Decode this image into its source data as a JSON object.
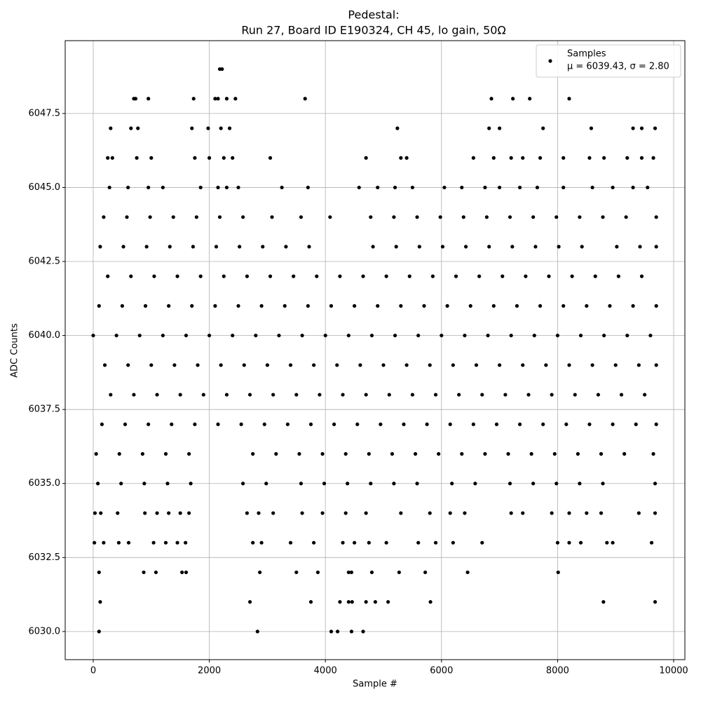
{
  "chart_data": {
    "type": "scatter",
    "title": "Pedestal:",
    "subtitle": "Run 27, Board ID E190324, CH 45, lo gain, 50Ω",
    "x_label": "Sample #",
    "y_label": "ADC Counts",
    "legend_label": "Samples",
    "legend_note": "μ = 6039.43, σ = 2.80",
    "legend_position": "upper right",
    "color": "#000000",
    "grid": true,
    "xlim": [
      -483,
      10193
    ],
    "ylim": [
      6029.05,
      6049.96
    ],
    "xticks": [
      0,
      2000,
      4000,
      6000,
      8000,
      10000
    ],
    "yticks": [
      {
        "value": 6030,
        "label": "6030.0"
      },
      {
        "value": 6032.5,
        "label": "6032.5"
      },
      {
        "value": 6035,
        "label": "6035.0"
      },
      {
        "value": 6037.5,
        "label": "6037.5"
      },
      {
        "value": 6040,
        "label": "6040.0"
      },
      {
        "value": 6042.5,
        "label": "6042.5"
      },
      {
        "value": 6045,
        "label": "6045.0"
      },
      {
        "value": 6047.5,
        "label": "6047.5"
      }
    ],
    "x": [
      0,
      400,
      800,
      1200,
      1600,
      2000,
      2400,
      2800,
      3200,
      3600,
      4000,
      4400,
      4800,
      5200,
      5600,
      6000,
      6400,
      6800,
      7200,
      7600,
      8000,
      8400,
      8800,
      9200,
      9600,
      200,
      600,
      1000,
      1400,
      1800,
      2200,
      2600,
      3000,
      3400,
      3800,
      4200,
      4600,
      5000,
      5400,
      5800,
      6200,
      6600,
      7000,
      7400,
      7800,
      8200,
      8600,
      9000,
      9400,
      9700,
      100,
      500,
      900,
      1300,
      1700,
      2100,
      2500,
      2900,
      3300,
      3700,
      4100,
      4500,
      4900,
      5300,
      5700,
      6100,
      6500,
      6900,
      7300,
      7700,
      8100,
      8500,
      8900,
      9300,
      9700,
      300,
      700,
      1100,
      1500,
      1900,
      2300,
      2700,
      3100,
      3500,
      3900,
      4300,
      4700,
      5100,
      5500,
      5900,
      6300,
      6700,
      7100,
      7500,
      7900,
      8300,
      8700,
      9100,
      9500,
      150,
      550,
      950,
      1350,
      1750,
      2150,
      2550,
      2950,
      3350,
      3750,
      4150,
      4550,
      4950,
      5350,
      5750,
      6150,
      6550,
      6950,
      7350,
      7750,
      8150,
      8550,
      8950,
      9350,
      9700,
      250,
      650,
      1050,
      1450,
      1850,
      2250,
      2650,
      3050,
      3450,
      3850,
      4250,
      4650,
      5050,
      5450,
      5850,
      6250,
      6650,
      7050,
      7450,
      7850,
      8250,
      8650,
      9050,
      9450,
      50,
      450,
      850,
      1250,
      1650,
      2750,
      3150,
      3550,
      3950,
      4350,
      4750,
      5150,
      5550,
      5950,
      6350,
      6750,
      7150,
      7550,
      7950,
      8350,
      8750,
      9150,
      9650,
      80,
      480,
      880,
      1280,
      1680,
      2580,
      2980,
      3580,
      3980,
      4380,
      4780,
      5180,
      5580,
      6180,
      6580,
      7180,
      7580,
      7980,
      8380,
      8780,
      9680,
      120,
      520,
      920,
      1320,
      1720,
      2120,
      2520,
      2920,
      3320,
      3720,
      4820,
      5220,
      5620,
      6020,
      6420,
      6820,
      7220,
      7620,
      8020,
      8420,
      9020,
      9420,
      9700,
      180,
      580,
      980,
      1380,
      1780,
      2180,
      2580,
      3080,
      3580,
      4080,
      4780,
      5180,
      5580,
      5980,
      6380,
      6780,
      7180,
      7580,
      7980,
      8380,
      8780,
      9180,
      9700,
      280,
      600,
      950,
      1200,
      1850,
      2150,
      2300,
      2500,
      3250,
      3700,
      4580,
      4900,
      5200,
      5500,
      6050,
      6350,
      6750,
      7000,
      7350,
      7650,
      8100,
      8600,
      8950,
      9300,
      9550,
      250,
      330,
      750,
      1000,
      1750,
      2000,
      2250,
      2400,
      3050,
      4700,
      5300,
      5400,
      6550,
      6900,
      7200,
      7400,
      7700,
      8100,
      8550,
      8800,
      9200,
      9450,
      9650,
      300,
      650,
      770,
      1700,
      1980,
      2200,
      2350,
      5240,
      6820,
      7000,
      7750,
      8580,
      9300,
      9450,
      9680,
      700,
      730,
      950,
      1730,
      2100,
      2150,
      2300,
      2450,
      3650,
      6860,
      7230,
      7520,
      8200,
      2180,
      2220,
      30,
      130,
      420,
      890,
      1100,
      1300,
      1500,
      1650,
      2650,
      2850,
      3100,
      3600,
      3950,
      4350,
      4700,
      5300,
      5800,
      6150,
      6400,
      7200,
      7400,
      7900,
      8200,
      8500,
      8750,
      9400,
      9680,
      20,
      180,
      440,
      610,
      1040,
      1250,
      1450,
      1590,
      2750,
      2900,
      3400,
      3800,
      4300,
      4500,
      4750,
      5050,
      5600,
      5900,
      6200,
      6700,
      8000,
      8200,
      8400,
      8850,
      8950,
      9620,
      100,
      870,
      1080,
      1530,
      1600,
      2870,
      3500,
      3870,
      4400,
      4450,
      4800,
      5270,
      5720,
      6450,
      8010,
      120,
      2700,
      3750,
      4250,
      4400,
      4460,
      4700,
      4860,
      5080,
      5810,
      8790,
      9680,
      100,
      2830,
      4100,
      4210,
      4450,
      4650
    ],
    "y": [
      6040,
      6040,
      6040,
      6040,
      6040,
      6040,
      6040,
      6040,
      6040,
      6040,
      6040,
      6040,
      6040,
      6040,
      6040,
      6040,
      6040,
      6040,
      6040,
      6040,
      6040,
      6040,
      6040,
      6040,
      6040,
      6039,
      6039,
      6039,
      6039,
      6039,
      6039,
      6039,
      6039,
      6039,
      6039,
      6039,
      6039,
      6039,
      6039,
      6039,
      6039,
      6039,
      6039,
      6039,
      6039,
      6039,
      6039,
      6039,
      6039,
      6039,
      6041,
      6041,
      6041,
      6041,
      6041,
      6041,
      6041,
      6041,
      6041,
      6041,
      6041,
      6041,
      6041,
      6041,
      6041,
      6041,
      6041,
      6041,
      6041,
      6041,
      6041,
      6041,
      6041,
      6041,
      6041,
      6038,
      6038,
      6038,
      6038,
      6038,
      6038,
      6038,
      6038,
      6038,
      6038,
      6038,
      6038,
      6038,
      6038,
      6038,
      6038,
      6038,
      6038,
      6038,
      6038,
      6038,
      6038,
      6038,
      6038,
      6037,
      6037,
      6037,
      6037,
      6037,
      6037,
      6037,
      6037,
      6037,
      6037,
      6037,
      6037,
      6037,
      6037,
      6037,
      6037,
      6037,
      6037,
      6037,
      6037,
      6037,
      6037,
      6037,
      6037,
      6037,
      6042,
      6042,
      6042,
      6042,
      6042,
      6042,
      6042,
      6042,
      6042,
      6042,
      6042,
      6042,
      6042,
      6042,
      6042,
      6042,
      6042,
      6042,
      6042,
      6042,
      6042,
      6042,
      6042,
      6042,
      6036,
      6036,
      6036,
      6036,
      6036,
      6036,
      6036,
      6036,
      6036,
      6036,
      6036,
      6036,
      6036,
      6036,
      6036,
      6036,
      6036,
      6036,
      6036,
      6036,
      6036,
      6036,
      6036,
      6035,
      6035,
      6035,
      6035,
      6035,
      6035,
      6035,
      6035,
      6035,
      6035,
      6035,
      6035,
      6035,
      6035,
      6035,
      6035,
      6035,
      6035,
      6035,
      6035,
      6035,
      6043,
      6043,
      6043,
      6043,
      6043,
      6043,
      6043,
      6043,
      6043,
      6043,
      6043,
      6043,
      6043,
      6043,
      6043,
      6043,
      6043,
      6043,
      6043,
      6043,
      6043,
      6043,
      6043,
      6044,
      6044,
      6044,
      6044,
      6044,
      6044,
      6044,
      6044,
      6044,
      6044,
      6044,
      6044,
      6044,
      6044,
      6044,
      6044,
      6044,
      6044,
      6044,
      6044,
      6044,
      6044,
      6044,
      6045,
      6045,
      6045,
      6045,
      6045,
      6045,
      6045,
      6045,
      6045,
      6045,
      6045,
      6045,
      6045,
      6045,
      6045,
      6045,
      6045,
      6045,
      6045,
      6045,
      6045,
      6045,
      6045,
      6045,
      6045,
      6046,
      6046,
      6046,
      6046,
      6046,
      6046,
      6046,
      6046,
      6046,
      6046,
      6046,
      6046,
      6046,
      6046,
      6046,
      6046,
      6046,
      6046,
      6046,
      6046,
      6046,
      6046,
      6046,
      6047,
      6047,
      6047,
      6047,
      6047,
      6047,
      6047,
      6047,
      6047,
      6047,
      6047,
      6047,
      6047,
      6047,
      6047,
      6048,
      6048,
      6048,
      6048,
      6048,
      6048,
      6048,
      6048,
      6048,
      6048,
      6048,
      6048,
      6048,
      6049,
      6049,
      6034,
      6034,
      6034,
      6034,
      6034,
      6034,
      6034,
      6034,
      6034,
      6034,
      6034,
      6034,
      6034,
      6034,
      6034,
      6034,
      6034,
      6034,
      6034,
      6034,
      6034,
      6034,
      6034,
      6034,
      6034,
      6034,
      6034,
      6033,
      6033,
      6033,
      6033,
      6033,
      6033,
      6033,
      6033,
      6033,
      6033,
      6033,
      6033,
      6033,
      6033,
      6033,
      6033,
      6033,
      6033,
      6033,
      6033,
      6033,
      6033,
      6033,
      6033,
      6033,
      6033,
      6032,
      6032,
      6032,
      6032,
      6032,
      6032,
      6032,
      6032,
      6032,
      6032,
      6032,
      6032,
      6032,
      6032,
      6032,
      6031,
      6031,
      6031,
      6031,
      6031,
      6031,
      6031,
      6031,
      6031,
      6031,
      6031,
      6031,
      6030,
      6030,
      6030,
      6030,
      6030,
      6030
    ]
  }
}
